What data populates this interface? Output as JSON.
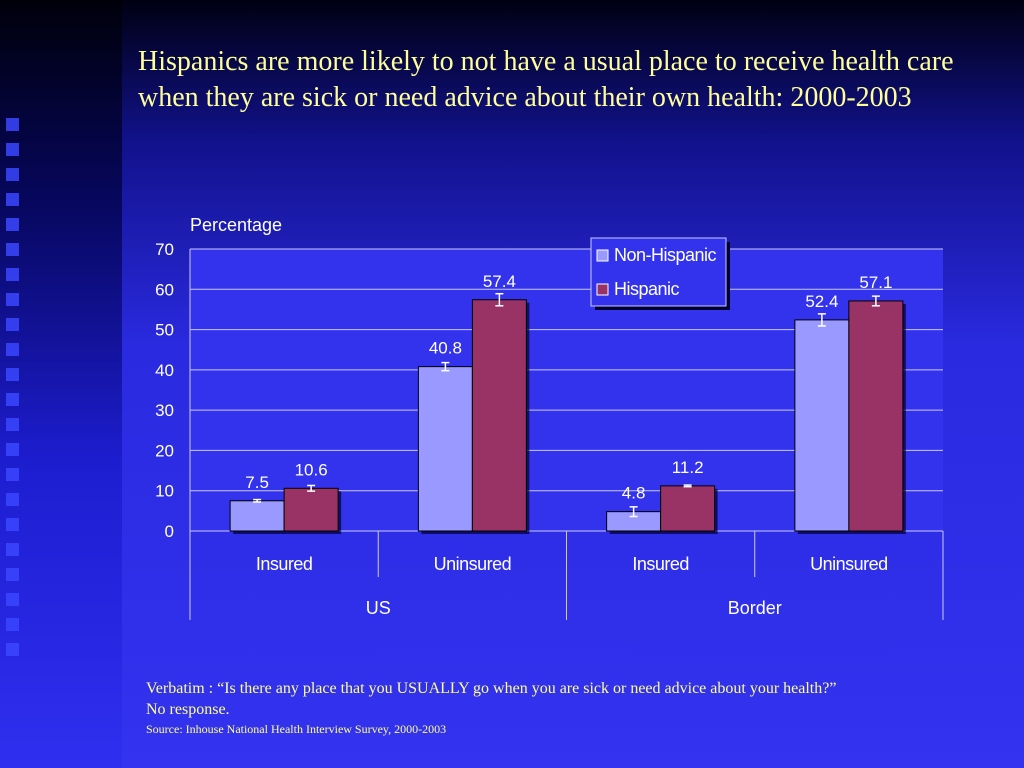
{
  "slide": {
    "title": "Hispanics are more likely to not have a usual place to receive health care when they are sick or need advice about their own health: 2000-2003",
    "verbatim": "Verbatim : “Is there any place that you USUALLY go when you are sick or need advice about your health?”",
    "no_response": "No response.",
    "source": "Source: Inhouse National Health Interview Survey, 2000-2003"
  },
  "colors": {
    "non_hispanic": "#9999ff",
    "hispanic": "#993366",
    "plot_bg": "#3333ee",
    "text": "#ffffff",
    "title": "#ffff99"
  },
  "chart_data": {
    "type": "bar",
    "ylabel": "Percentage",
    "ylim": [
      0,
      70
    ],
    "yticks": [
      0,
      10,
      20,
      30,
      40,
      50,
      60,
      70
    ],
    "categories": [
      "Insured",
      "Uninsured",
      "Insured",
      "Uninsured"
    ],
    "groups": [
      {
        "label": "US",
        "span": [
          0,
          1
        ]
      },
      {
        "label": "Border",
        "span": [
          2,
          3
        ]
      }
    ],
    "series": [
      {
        "name": "Non-Hispanic",
        "values": [
          7.5,
          40.8,
          4.8,
          52.4
        ],
        "errors": [
          0.3,
          1.0,
          1.2,
          1.5
        ]
      },
      {
        "name": "Hispanic",
        "values": [
          10.6,
          57.4,
          11.2,
          57.1
        ],
        "errors": [
          0.7,
          1.5,
          0.2,
          1.2
        ]
      }
    ],
    "legend": "top-right",
    "grid": true
  }
}
